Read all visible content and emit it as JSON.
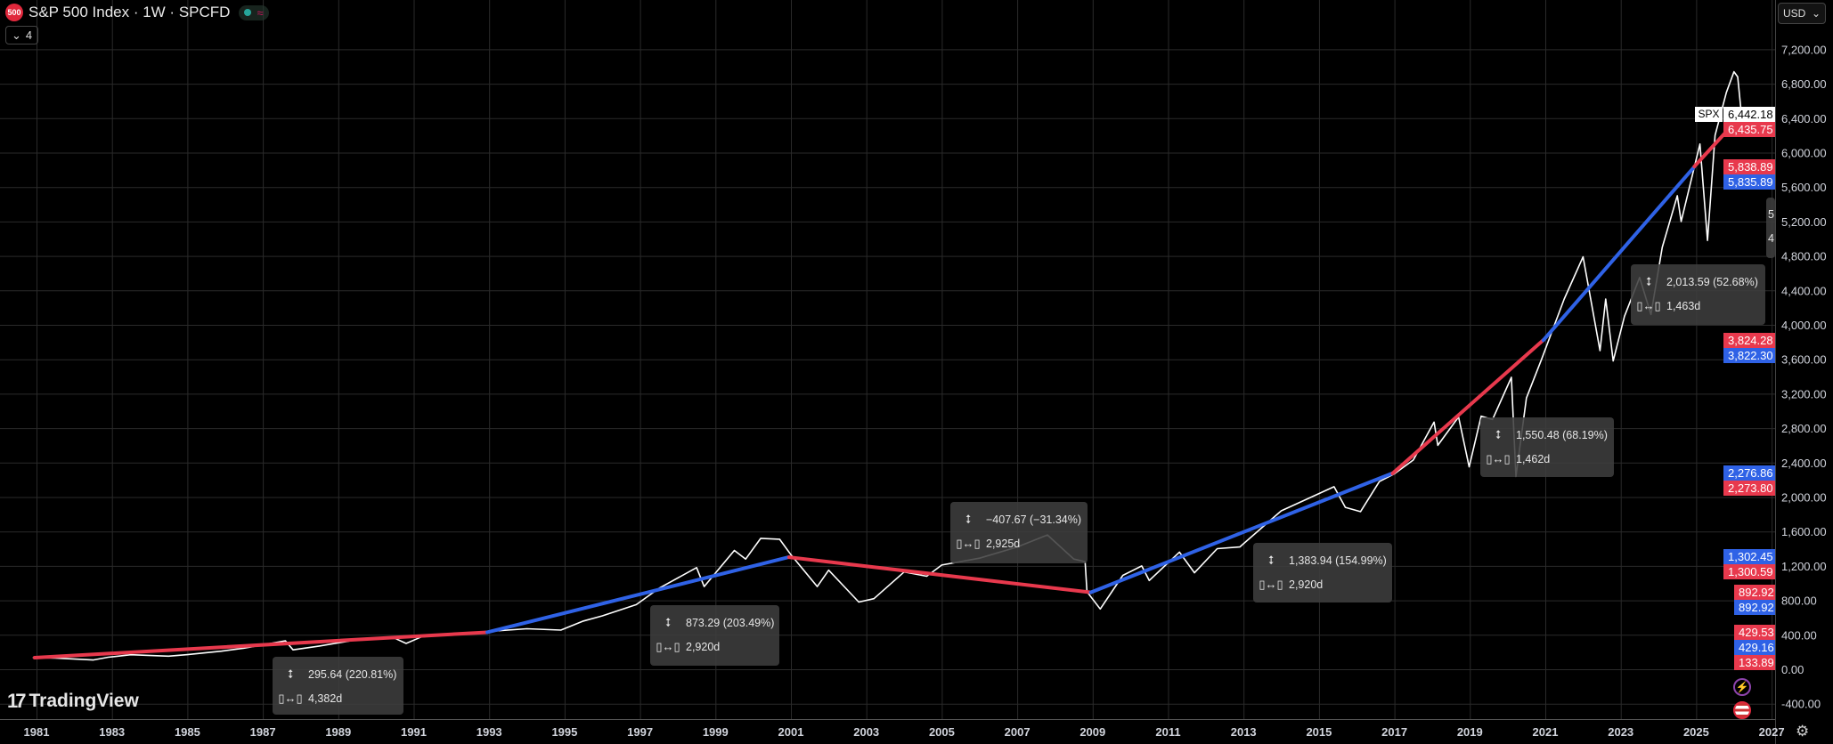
{
  "header": {
    "symbol_icon_text": "500",
    "title": "S&P 500 Index · 1W · SPCFD",
    "market_status": "open",
    "approx_glyph": "≈",
    "collapse_chevron": "⌄",
    "indicator_count": "4",
    "currency": "USD",
    "currency_chevron": "⌄"
  },
  "branding": {
    "logo_text": "TradingView",
    "logo_mark": "17"
  },
  "colors": {
    "background": "#000000",
    "grid": "#2a2a2a",
    "price_line": "#ffffff",
    "red": "#e8394d",
    "blue": "#2f62e6",
    "box": "#3e3e3e"
  },
  "icons": {
    "price_range": "vertical-arrow-icon",
    "date_range": "horizontal-range-icon",
    "settings": "gear-icon",
    "alerts": "lightning-icon",
    "region": "us-flag-icon"
  },
  "chart_data": {
    "type": "line",
    "symbol_label": "SPX",
    "last_price": "6,442.18",
    "x_ticks": [
      "1981",
      "1983",
      "1985",
      "1987",
      "1989",
      "1991",
      "1993",
      "1995",
      "1997",
      "1999",
      "2001",
      "2003",
      "2005",
      "2007",
      "2009",
      "2011",
      "2013",
      "2015",
      "2017",
      "2019",
      "2021",
      "2023",
      "2025",
      "2027"
    ],
    "y_ticks": [
      "-400.00",
      "0.00",
      "400.00",
      "800.00",
      "1,200.00",
      "1,600.00",
      "2,000.00",
      "2,400.00",
      "2,800.00",
      "3,200.00",
      "3,600.00",
      "4,000.00",
      "4,400.00",
      "4,800.00",
      "5,200.00",
      "5,600.00",
      "6,000.00",
      "6,400.00",
      "6,800.00",
      "7,200.00"
    ],
    "ylim": [
      -400,
      7200
    ],
    "grid": true,
    "series": [
      {
        "values": [
          [
            1980.9,
            135
          ],
          [
            1981.5,
            130
          ],
          [
            1982.5,
            108
          ],
          [
            1982.9,
            140
          ],
          [
            1983.5,
            168
          ],
          [
            1984.5,
            152
          ],
          [
            1985,
            170
          ],
          [
            1985.9,
            210
          ],
          [
            1986.5,
            245
          ],
          [
            1987.6,
            330
          ],
          [
            1987.8,
            225
          ],
          [
            1988.5,
            270
          ],
          [
            1989.6,
            350
          ],
          [
            1990.5,
            360
          ],
          [
            1990.8,
            300
          ],
          [
            1991.2,
            375
          ],
          [
            1992,
            410
          ],
          [
            1993,
            440
          ],
          [
            1994,
            470
          ],
          [
            1994.9,
            455
          ],
          [
            1995.5,
            560
          ],
          [
            1996,
            620
          ],
          [
            1996.9,
            750
          ],
          [
            1997.5,
            940
          ],
          [
            1998.5,
            1180
          ],
          [
            1998.7,
            960
          ],
          [
            1999.5,
            1380
          ],
          [
            1999.8,
            1280
          ],
          [
            2000.2,
            1520
          ],
          [
            2000.7,
            1510
          ],
          [
            2001,
            1330
          ],
          [
            2001.7,
            960
          ],
          [
            2002,
            1150
          ],
          [
            2002.5,
            920
          ],
          [
            2002.8,
            780
          ],
          [
            2003.2,
            820
          ],
          [
            2004,
            1130
          ],
          [
            2004.6,
            1080
          ],
          [
            2005,
            1210
          ],
          [
            2006,
            1290
          ],
          [
            2007,
            1420
          ],
          [
            2007.8,
            1560
          ],
          [
            2008.5,
            1280
          ],
          [
            2008.8,
            1250
          ],
          [
            2008.85,
            900
          ],
          [
            2009.2,
            700
          ],
          [
            2009.8,
            1090
          ],
          [
            2010.3,
            1200
          ],
          [
            2010.5,
            1030
          ],
          [
            2011.3,
            1360
          ],
          [
            2011.7,
            1120
          ],
          [
            2012.3,
            1400
          ],
          [
            2012.9,
            1420
          ],
          [
            2013.5,
            1650
          ],
          [
            2014,
            1840
          ],
          [
            2014.8,
            2000
          ],
          [
            2015.4,
            2120
          ],
          [
            2015.7,
            1880
          ],
          [
            2016.1,
            1830
          ],
          [
            2016.6,
            2180
          ],
          [
            2017,
            2270
          ],
          [
            2017.5,
            2430
          ],
          [
            2018.05,
            2870
          ],
          [
            2018.15,
            2600
          ],
          [
            2018.7,
            2930
          ],
          [
            2018.98,
            2350
          ],
          [
            2019.3,
            2940
          ],
          [
            2019.6,
            2900
          ],
          [
            2020.1,
            3390
          ],
          [
            2020.22,
            2240
          ],
          [
            2020.5,
            3150
          ],
          [
            2020.9,
            3600
          ],
          [
            2021.5,
            4300
          ],
          [
            2022.0,
            4790
          ],
          [
            2022.45,
            3700
          ],
          [
            2022.6,
            4300
          ],
          [
            2022.8,
            3580
          ],
          [
            2023.1,
            4100
          ],
          [
            2023.5,
            4550
          ],
          [
            2023.8,
            4120
          ],
          [
            2024.1,
            4900
          ],
          [
            2024.5,
            5500
          ],
          [
            2024.6,
            5200
          ],
          [
            2025.1,
            6100
          ],
          [
            2025.3,
            4980
          ],
          [
            2025.5,
            6200
          ],
          [
            2025.8,
            6700
          ],
          [
            2026.0,
            6940
          ],
          [
            2026.1,
            6880
          ],
          [
            2026.2,
            6442.18
          ]
        ]
      }
    ],
    "trend_lines": [
      {
        "color": "red",
        "from": [
          1980.95,
          133.89
        ],
        "to": [
          1992.95,
          429.53
        ]
      },
      {
        "color": "blue",
        "from": [
          1992.95,
          429.16
        ],
        "to": [
          2000.95,
          1302.45
        ]
      },
      {
        "color": "red",
        "from": [
          2000.95,
          1300.59
        ],
        "to": [
          2008.95,
          892.92
        ]
      },
      {
        "color": "blue",
        "from": [
          2008.95,
          892.92
        ],
        "to": [
          2016.95,
          2276.86
        ]
      },
      {
        "color": "red",
        "from": [
          2016.95,
          2273.8
        ],
        "to": [
          2020.95,
          3824.28
        ]
      },
      {
        "color": "blue",
        "from": [
          2020.95,
          3822.3
        ],
        "to": [
          2024.95,
          5835.89
        ]
      },
      {
        "color": "red",
        "from": [
          2024.95,
          5838.89
        ],
        "to": [
          2026.2,
          6435.75
        ]
      }
    ],
    "measurements": [
      {
        "change": "295.64 (220.81%)",
        "days": "4,382d"
      },
      {
        "change": "873.29 (203.49%)",
        "days": "2,920d"
      },
      {
        "change": "−407.67 (−31.34%)",
        "days": "2,925d"
      },
      {
        "change": "1,383.94 (154.99%)",
        "days": "2,920d"
      },
      {
        "change": "1,550.48 (68.19%)",
        "days": "1,462d"
      },
      {
        "change": "2,013.59 (52.68%)",
        "days": "1,463d"
      },
      {
        "change": "5",
        "days": "4"
      }
    ],
    "price_labels": [
      {
        "text": "6,442.18",
        "value": 6442.18,
        "color": "white"
      },
      {
        "text": "6,435.75",
        "value": 6435.75,
        "color": "red"
      },
      {
        "text": "5,838.89",
        "value": 5838.89,
        "color": "red"
      },
      {
        "text": "5,835.89",
        "value": 5835.89,
        "color": "blue"
      },
      {
        "text": "3,824.28",
        "value": 3824.28,
        "color": "red"
      },
      {
        "text": "3,822.30",
        "value": 3822.3,
        "color": "blue"
      },
      {
        "text": "2,276.86",
        "value": 2276.86,
        "color": "blue"
      },
      {
        "text": "2,273.80",
        "value": 2273.8,
        "color": "red"
      },
      {
        "text": "1,302.45",
        "value": 1302.45,
        "color": "blue"
      },
      {
        "text": "1,300.59",
        "value": 1300.59,
        "color": "red"
      },
      {
        "text": "892.92",
        "value": 892.92,
        "color": "red"
      },
      {
        "text": "892.92",
        "value": 892.92,
        "color": "blue"
      },
      {
        "text": "429.53",
        "value": 429.53,
        "color": "red"
      },
      {
        "text": "429.16",
        "value": 429.16,
        "color": "blue"
      },
      {
        "text": "133.89",
        "value": 133.89,
        "color": "red"
      }
    ]
  }
}
